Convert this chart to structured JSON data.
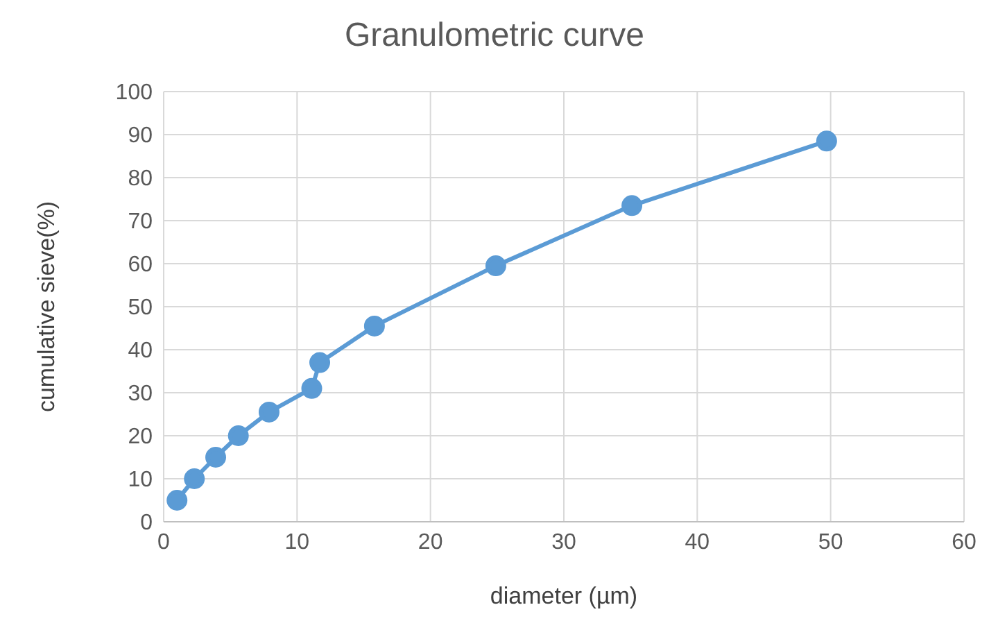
{
  "chart_data": {
    "type": "line",
    "title": "Granulometric curve",
    "xlabel": "diameter (µm)",
    "ylabel": "cumulative sieve(%)",
    "x": [
      1,
      2.3,
      3.9,
      5.6,
      7.9,
      11.1,
      11.7,
      15.8,
      24.9,
      35.1,
      49.7
    ],
    "series": [
      {
        "color": "#5b9bd5",
        "values": [
          5,
          10,
          15,
          20,
          25.5,
          31,
          37,
          45.5,
          59.5,
          73.5,
          88.5
        ]
      }
    ],
    "xlim": [
      0,
      60
    ],
    "xticks": [
      0,
      10,
      20,
      30,
      40,
      50,
      60
    ],
    "ylim": [
      0,
      100
    ],
    "yticks": [
      0,
      10,
      20,
      30,
      40,
      50,
      60,
      70,
      80,
      90,
      100
    ],
    "grid": true,
    "marker": "circle",
    "line_style": "solid"
  }
}
